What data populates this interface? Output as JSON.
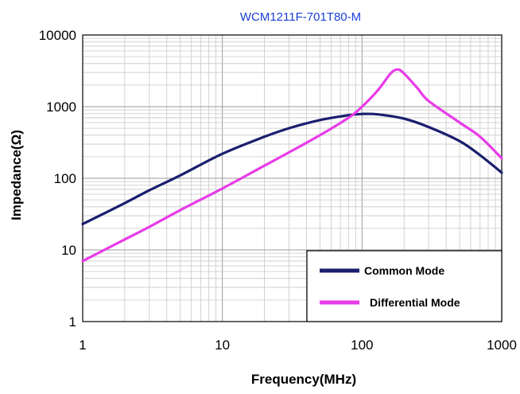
{
  "chart_data": {
    "type": "line",
    "title": "WCM1211F-701T80-M",
    "title_color": "#1a3fd8",
    "xlabel": "Frequency(MHz)",
    "ylabel": "Impedance(Ω)",
    "x_scale": "log",
    "y_scale": "log",
    "xlim": [
      1,
      1000
    ],
    "ylim": [
      1,
      10000
    ],
    "x_ticks": [
      "1",
      "10",
      "100",
      "1000"
    ],
    "y_ticks": [
      "1",
      "10",
      "100",
      "1000",
      "10000"
    ],
    "grid": true,
    "legend_position": "bottom-right",
    "series": [
      {
        "name": "Common Mode",
        "color": "#1a1f6e",
        "x": [
          1,
          2,
          3,
          5,
          10,
          20,
          30,
          50,
          80,
          100,
          130,
          200,
          300,
          500,
          700,
          1000
        ],
        "y": [
          23,
          45,
          68,
          110,
          220,
          380,
          500,
          650,
          760,
          790,
          780,
          680,
          520,
          330,
          210,
          120
        ]
      },
      {
        "name": "Differential Mode",
        "color": "#e83be8",
        "x": [
          1,
          2,
          3,
          5,
          10,
          20,
          30,
          50,
          80,
          100,
          130,
          160,
          180,
          200,
          250,
          300,
          500,
          700,
          1000
        ],
        "y": [
          7,
          14,
          21,
          36,
          72,
          150,
          230,
          400,
          700,
          1000,
          1700,
          2900,
          3300,
          2900,
          1800,
          1200,
          600,
          380,
          190
        ]
      }
    ]
  }
}
